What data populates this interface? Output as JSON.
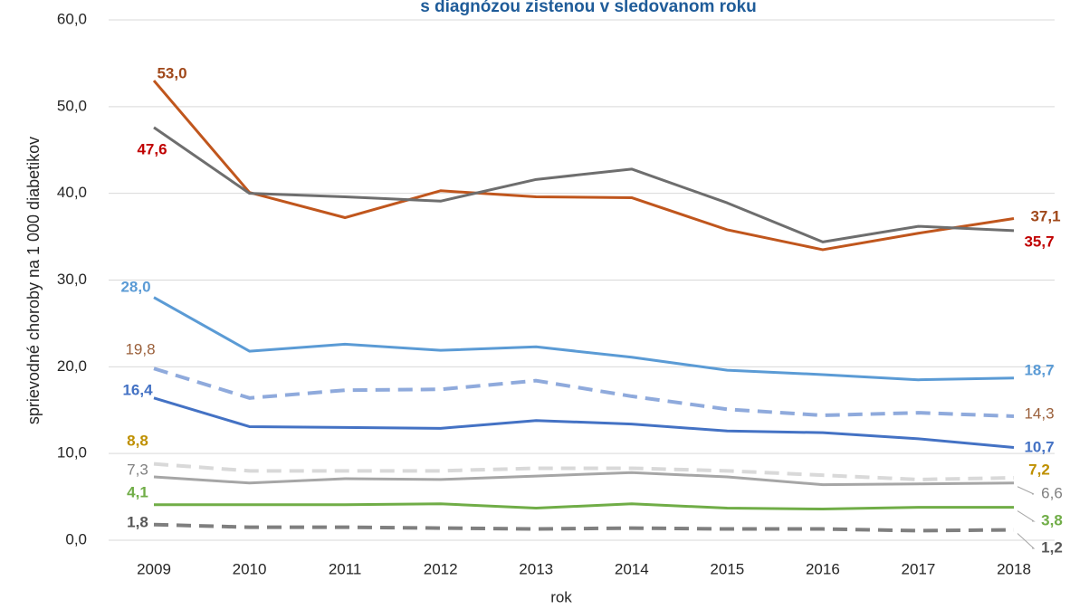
{
  "chart_data": {
    "type": "line",
    "title": "s diagnózou zistenou v sledovanom roku",
    "x_label": "rok",
    "y_label": "sprievodné choroby na 1 000 diabetikov",
    "categories": [
      "2009",
      "2010",
      "2011",
      "2012",
      "2013",
      "2014",
      "2015",
      "2016",
      "2017",
      "2018"
    ],
    "ylim": [
      0,
      60
    ],
    "yticks": [
      {
        "value": 0,
        "label": "0,0"
      },
      {
        "value": 10,
        "label": "10,0"
      },
      {
        "value": 20,
        "label": "20,0"
      },
      {
        "value": 30,
        "label": "30,0"
      },
      {
        "value": 40,
        "label": "40,0"
      },
      {
        "value": 50,
        "label": "50,0"
      },
      {
        "value": 60,
        "label": "60,0"
      }
    ],
    "grid": true,
    "series": [
      {
        "color": "#c0561d",
        "dash": false,
        "label_color": "#a0481a",
        "label_bold": true,
        "values": [
          53.0,
          40.1,
          37.2,
          40.3,
          39.6,
          39.5,
          35.8,
          33.5,
          35.4,
          37.1
        ],
        "value_labels": [
          "53,0",
          null,
          null,
          null,
          null,
          null,
          null,
          null,
          null,
          "37,1"
        ]
      },
      {
        "color": "#6e6e6e",
        "dash": false,
        "label_color": "#c00000",
        "label_bold": true,
        "values": [
          47.6,
          40.0,
          39.6,
          39.1,
          41.6,
          42.8,
          38.9,
          34.4,
          36.2,
          35.7
        ],
        "value_labels": [
          "47,6",
          null,
          null,
          null,
          null,
          null,
          null,
          null,
          null,
          "35,7"
        ]
      },
      {
        "color": "#5b9bd5",
        "dash": false,
        "label_color": "#5b9bd5",
        "label_bold": true,
        "values": [
          28.0,
          21.8,
          22.6,
          21.9,
          22.3,
          21.1,
          19.6,
          19.1,
          18.5,
          18.7
        ],
        "value_labels": [
          "28,0",
          null,
          null,
          null,
          null,
          null,
          null,
          null,
          null,
          "18,7"
        ]
      },
      {
        "color": "#8faadc",
        "dash": true,
        "label_color": "#9a5f3a",
        "label_bold": false,
        "values": [
          19.8,
          16.4,
          17.3,
          17.4,
          18.4,
          16.6,
          15.1,
          14.4,
          14.7,
          14.3
        ],
        "value_labels": [
          "19,8",
          null,
          null,
          null,
          null,
          null,
          null,
          null,
          null,
          "14,3"
        ]
      },
      {
        "color": "#4472c4",
        "dash": false,
        "label_color": "#4472c4",
        "label_bold": true,
        "values": [
          16.4,
          13.1,
          13.0,
          12.9,
          13.8,
          13.4,
          12.6,
          12.4,
          11.7,
          10.7
        ],
        "value_labels": [
          "16,4",
          null,
          null,
          null,
          null,
          null,
          null,
          null,
          null,
          "10,7"
        ]
      },
      {
        "color": "#d9d9d9",
        "dash": true,
        "label_color": "#bf9000",
        "label_bold": true,
        "values": [
          8.8,
          8.0,
          8.0,
          8.0,
          8.3,
          8.3,
          8.0,
          7.5,
          7.0,
          7.2
        ],
        "value_labels": [
          "8,8",
          null,
          null,
          null,
          null,
          null,
          null,
          null,
          null,
          "7,2"
        ]
      },
      {
        "color": "#a6a6a6",
        "dash": false,
        "label_color": "#808080",
        "label_bold": false,
        "values": [
          7.3,
          6.6,
          7.1,
          7.0,
          7.4,
          7.8,
          7.3,
          6.4,
          6.5,
          6.6
        ],
        "value_labels": [
          "7,3",
          null,
          null,
          null,
          null,
          null,
          null,
          null,
          null,
          "6,6"
        ]
      },
      {
        "color": "#70ad47",
        "dash": false,
        "label_color": "#70ad47",
        "label_bold": true,
        "values": [
          4.1,
          4.1,
          4.1,
          4.2,
          3.7,
          4.2,
          3.7,
          3.6,
          3.8,
          3.8
        ],
        "value_labels": [
          "4,1",
          null,
          null,
          null,
          null,
          null,
          null,
          null,
          null,
          "3,8"
        ]
      },
      {
        "color": "#7f7f7f",
        "dash": true,
        "label_color": "#595959",
        "label_bold": true,
        "values": [
          1.8,
          1.5,
          1.5,
          1.4,
          1.3,
          1.4,
          1.3,
          1.3,
          1.1,
          1.2
        ],
        "value_labels": [
          "1,8",
          null,
          null,
          null,
          null,
          null,
          null,
          null,
          null,
          "1,2"
        ]
      }
    ]
  }
}
